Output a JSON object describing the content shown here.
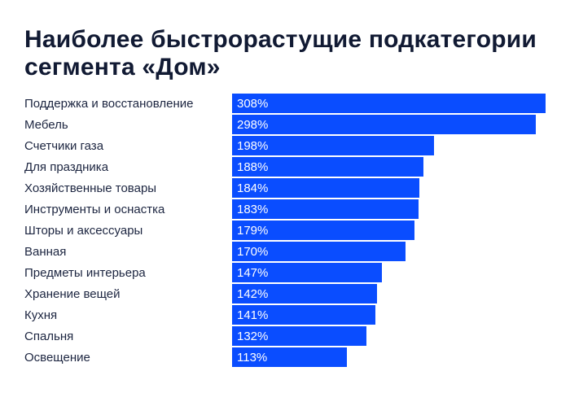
{
  "chart_data": {
    "type": "bar",
    "orientation": "horizontal",
    "title": "Наиболее быстрорастущие подкатегории сегмента «Дом»",
    "categories": [
      "Поддержка и восстановление",
      "Мебель",
      "Счетчики газа",
      "Для праздника",
      "Хозяйственные товары",
      "Инструменты и оснастка",
      "Шторы и аксессуары",
      "Ванная",
      "Предметы интерьера",
      "Хранение вещей",
      "Кухня",
      "Спальня",
      "Освещение"
    ],
    "values": [
      308,
      298,
      198,
      188,
      184,
      183,
      179,
      170,
      147,
      142,
      141,
      132,
      113
    ],
    "value_labels": [
      "308%",
      "298%",
      "198%",
      "188%",
      "184%",
      "183%",
      "179%",
      "170%",
      "147%",
      "142%",
      "141%",
      "132%",
      "113%"
    ],
    "unit": "%",
    "xlim": [
      0,
      308
    ],
    "grid": false,
    "legend": "none",
    "bar_color": "#0a4dff",
    "label_color": "#1c2540",
    "title_color": "#111a33"
  }
}
